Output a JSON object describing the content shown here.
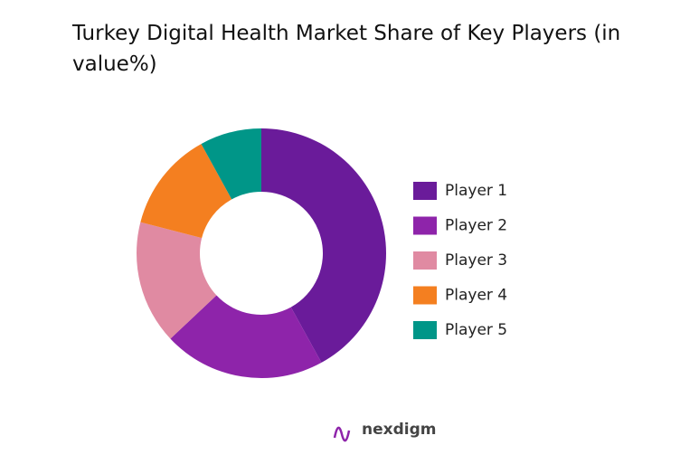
{
  "chart_data": {
    "type": "donut",
    "title": "Turkey Digital Health Market Share of Key Players (in value%)",
    "categories": [
      "Player 1",
      "Player 2",
      "Player 3",
      "Player 4",
      "Player 5"
    ],
    "values": [
      42,
      21,
      16,
      13,
      8
    ],
    "colors": [
      "#6a1b9a",
      "#8e24aa",
      "#e08aa2",
      "#f47f20",
      "#009688"
    ],
    "legend": "right"
  },
  "watermark": "nexdigm"
}
